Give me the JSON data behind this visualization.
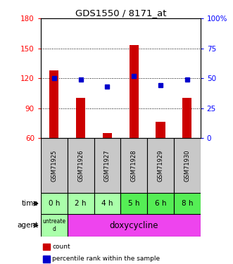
{
  "title": "GDS1550 / 8171_at",
  "samples": [
    "GSM71925",
    "GSM71926",
    "GSM71927",
    "GSM71928",
    "GSM71929",
    "GSM71930"
  ],
  "time_labels": [
    "0 h",
    "2 h",
    "4 h",
    "5 h",
    "6 h",
    "8 h"
  ],
  "count_values": [
    128,
    100,
    65,
    153,
    76,
    100
  ],
  "percentile_values": [
    50,
    49,
    43,
    52,
    44,
    49
  ],
  "ylim_left": [
    60,
    180
  ],
  "ylim_right": [
    0,
    100
  ],
  "yticks_left": [
    60,
    90,
    120,
    150,
    180
  ],
  "yticks_right": [
    0,
    25,
    50,
    75,
    100
  ],
  "bar_color": "#cc0000",
  "dot_color": "#0000cc",
  "bar_width": 0.35,
  "sample_bg": "#c8c8c8",
  "time_bg_light": "#aaffaa",
  "time_bg_dark": "#55ee55",
  "agent_untreated_bg": "#aaffaa",
  "agent_doxycy_bg": "#ee44ee",
  "time_colors": [
    "#aaffaa",
    "#aaffaa",
    "#aaffaa",
    "#55ee55",
    "#55ee55",
    "#55ee55"
  ]
}
